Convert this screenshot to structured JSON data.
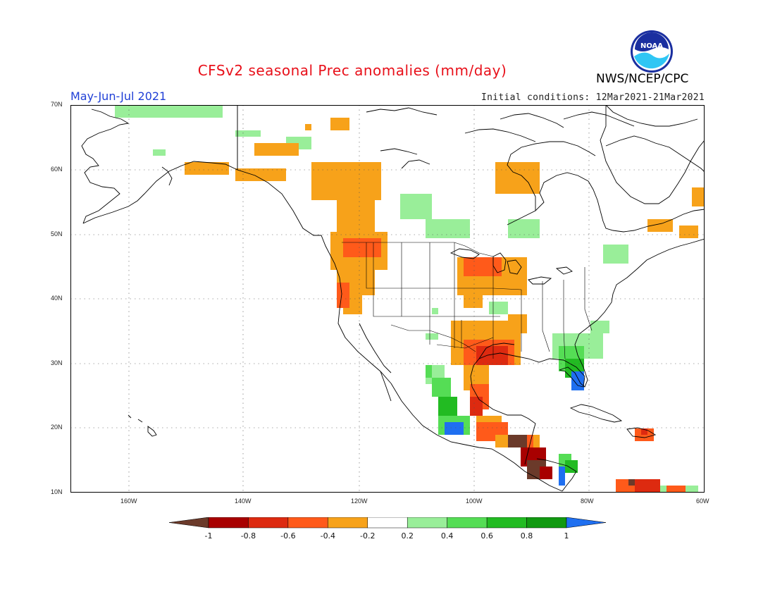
{
  "header": {
    "title": "CFSv2 seasonal Prec anomalies (mm/day)",
    "season": "May-Jun-Jul 2021",
    "initial_conditions": "Initial conditions: 12Mar2021-21Mar2021",
    "agency": "NWS/NCEP/CPC",
    "logo_text": "NOAA"
  },
  "map": {
    "lat_labels": [
      "70N",
      "60N",
      "50N",
      "40N",
      "30N",
      "20N",
      "10N"
    ],
    "lon_labels": [
      "160W",
      "140W",
      "120W",
      "100W",
      "80W",
      "60W"
    ],
    "grid": true,
    "grid_style": "dotted"
  },
  "colorbar": {
    "tick_labels": [
      "-1",
      "-0.8",
      "-0.6",
      "-0.4",
      "-0.2",
      "0.2",
      "0.4",
      "0.6",
      "0.8",
      "1"
    ],
    "colors": [
      "#6b3a2a",
      "#a80000",
      "#dd2a10",
      "#ff5a1a",
      "#f7a21a",
      "#ffffff",
      "#99ee99",
      "#55dd55",
      "#22bb22",
      "#119911",
      "#1f6ff0"
    ]
  }
}
